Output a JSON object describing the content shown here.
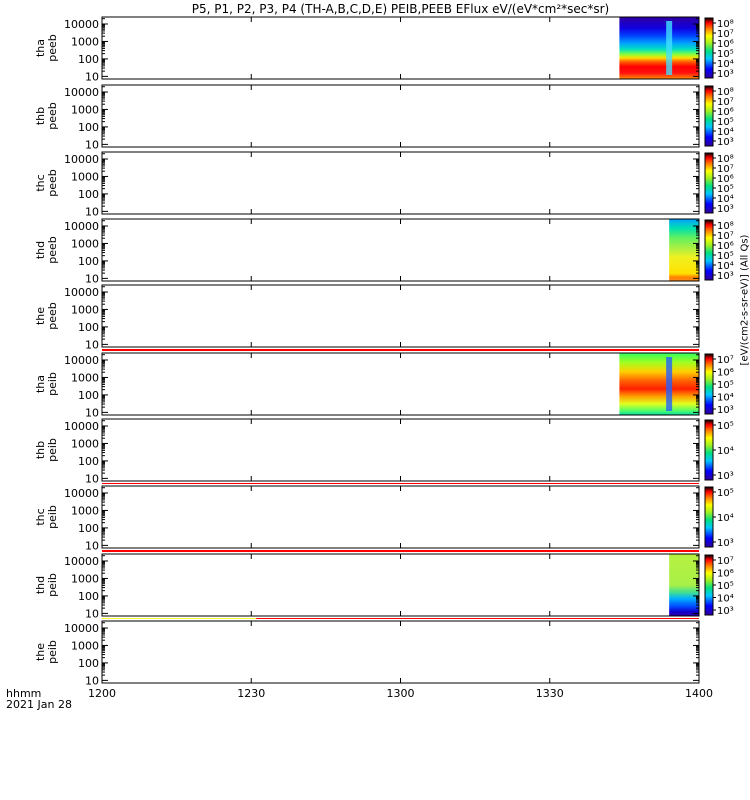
{
  "title": "P5, P1, P2, P3, P4 (TH-A,B,C,D,E) PEIB,PEEB EFlux eV/(eV*cm²*sec*sr)",
  "colorbar_unit_label": "[eV/(cm2-s-sr-eV)] (All Qs)",
  "chart_data": {
    "type": "heatmap",
    "xaxis": {
      "label_lines": [
        "hhmm",
        "2021 Jan 28"
      ],
      "range": [
        "12:00",
        "14:00"
      ],
      "ticks": [
        "1200",
        "1230",
        "1300",
        "1330",
        "1400"
      ]
    },
    "yaxis": {
      "scale": "log",
      "ticks": [
        "10",
        "100",
        "1000",
        "10000"
      ]
    },
    "panels": [
      {
        "label_lines": [
          "tha",
          "peeb"
        ],
        "data_start": "13:44",
        "cbar_ticks": [
          "10³",
          "10⁴",
          "10⁵",
          "10⁶",
          "10⁷",
          "10⁸"
        ]
      },
      {
        "label_lines": [
          "thb",
          "peeb"
        ],
        "cbar_ticks": [
          "10³",
          "10⁴",
          "10⁵",
          "10⁶",
          "10⁷",
          "10⁸"
        ]
      },
      {
        "label_lines": [
          "thc",
          "peeb"
        ],
        "cbar_ticks": [
          "10³",
          "10⁴",
          "10⁵",
          "10⁶",
          "10⁷",
          "10⁸"
        ]
      },
      {
        "label_lines": [
          "thd",
          "peeb"
        ],
        "data_start": "13:54",
        "cbar_ticks": [
          "10³",
          "10⁴",
          "10⁵",
          "10⁶",
          "10⁷",
          "10⁸"
        ]
      },
      {
        "label_lines": [
          "the",
          "peeb"
        ]
      },
      {
        "label_lines": [
          "tha",
          "peib"
        ],
        "data_start": "13:44",
        "cbar_ticks": [
          "10³",
          "10⁴",
          "10⁵",
          "10⁶",
          "10⁷"
        ]
      },
      {
        "label_lines": [
          "thb",
          "peib"
        ],
        "cbar_ticks": [
          "10³",
          "10⁴",
          "10⁵"
        ]
      },
      {
        "label_lines": [
          "thc",
          "peib"
        ],
        "cbar_ticks": [
          "10³",
          "10⁴",
          "10⁵"
        ]
      },
      {
        "label_lines": [
          "thd",
          "peib"
        ],
        "data_start": "13:54",
        "cbar_ticks": [
          "10³",
          "10⁴",
          "10⁵",
          "10⁶",
          "10⁷"
        ]
      },
      {
        "label_lines": [
          "the",
          "peib"
        ]
      }
    ],
    "status_bars": [
      {
        "after_panel": 4,
        "segments": [
          {
            "from": "12:00",
            "to": "14:00",
            "color": "#ff0000"
          }
        ]
      },
      {
        "after_panel": 5,
        "segments": [
          {
            "from": "12:00",
            "to": "14:00",
            "color": "#ff0000"
          }
        ]
      },
      {
        "after_panel": 6,
        "segments": [
          {
            "from": "12:00",
            "to": "14:00",
            "color": "#ff0000"
          }
        ]
      },
      {
        "after_panel": 7,
        "segments": [
          {
            "from": "12:00",
            "to": "14:00",
            "color": "#ff0000"
          }
        ]
      },
      {
        "after_panel": 8,
        "segments": [
          {
            "from": "12:00",
            "to": "12:31",
            "color": "#ffff33"
          },
          {
            "from": "12:31",
            "to": "14:00",
            "color": "#ff0000"
          }
        ]
      }
    ]
  }
}
